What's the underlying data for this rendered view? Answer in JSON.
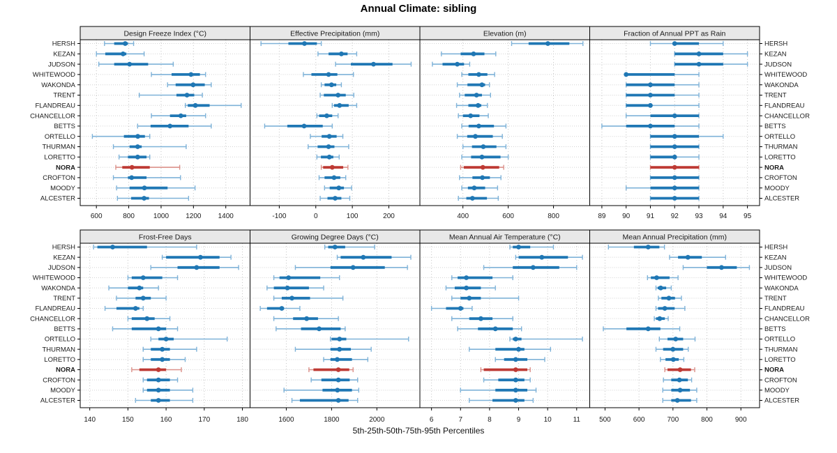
{
  "title": "Annual Climate: sibling",
  "footer": "5th-25th-50th-75th-95th Percentiles",
  "highlight_station": "NORA",
  "stations": [
    "HERSH",
    "KEZAN",
    "JUDSON",
    "WHITEWOOD",
    "WAKONDA",
    "TRENT",
    "FLANDREAU",
    "CHANCELLOR",
    "BETTS",
    "ORTELLO",
    "THURMAN",
    "LORETTO",
    "NORA",
    "CROFTON",
    "MOODY",
    "ALCESTER"
  ],
  "percentile_labels": [
    "5th",
    "25th",
    "50th",
    "75th",
    "95th"
  ],
  "colors": {
    "series": "#1F77B4",
    "series_light": "#7EB2D8",
    "highlight": "#BE3A34",
    "highlight_light": "#DB9089",
    "strip_bg": "#E8E8E8",
    "grid": "#C4C4C4",
    "border": "#000000",
    "text": "#1A1A1A"
  },
  "chart_data": {
    "type": "trellis-dotplot",
    "title": "Annual Climate: sibling",
    "xlabel": "5th-25th-50th-75th-95th Percentiles",
    "layout": {
      "rows": 2,
      "cols": 4,
      "grid": "dotted",
      "legend_position": "none",
      "station_labels": "both-sides"
    },
    "panels": [
      {
        "title": "Design Freeze Index (°C)",
        "row": 0,
        "col": 0,
        "xlim": [
          500,
          1550
        ],
        "ticks": [
          600,
          800,
          1000,
          1200,
          1400
        ],
        "values": [
          [
            650,
            710,
            778,
            795,
            830
          ],
          [
            600,
            655,
            765,
            785,
            895
          ],
          [
            615,
            710,
            805,
            920,
            1075
          ],
          [
            940,
            1065,
            1185,
            1240,
            1275
          ],
          [
            1040,
            1090,
            1198,
            1270,
            1310
          ],
          [
            865,
            1095,
            1160,
            1205,
            1255
          ],
          [
            1150,
            1165,
            1212,
            1300,
            1495
          ],
          [
            940,
            1055,
            1122,
            1155,
            1275
          ],
          [
            855,
            935,
            1055,
            1170,
            1310
          ],
          [
            575,
            770,
            856,
            900,
            930
          ],
          [
            705,
            805,
            855,
            880,
            1155
          ],
          [
            740,
            795,
            855,
            910,
            930
          ],
          [
            720,
            760,
            820,
            930,
            1115
          ],
          [
            705,
            795,
            818,
            910,
            1120
          ],
          [
            725,
            805,
            897,
            1040,
            1210
          ],
          [
            730,
            815,
            895,
            925,
            1170
          ]
        ]
      },
      {
        "title": "Effective Precipitation (mm)",
        "row": 0,
        "col": 1,
        "xlim": [
          -180,
          285
        ],
        "ticks": [
          -100,
          0,
          100,
          200
        ],
        "values": [
          [
            -150,
            -75,
            -31,
            3,
            15
          ],
          [
            6,
            35,
            70,
            87,
            112
          ],
          [
            54,
            96,
            158,
            210,
            261
          ],
          [
            -34,
            -12,
            35,
            59,
            103
          ],
          [
            15,
            24,
            43,
            56,
            70
          ],
          [
            12,
            22,
            61,
            82,
            104
          ],
          [
            45,
            50,
            65,
            90,
            112
          ],
          [
            3,
            9,
            30,
            45,
            61
          ],
          [
            -140,
            -78,
            -32,
            19,
            45
          ],
          [
            -15,
            16,
            37,
            57,
            74
          ],
          [
            -21,
            5,
            35,
            51,
            90
          ],
          [
            3,
            14,
            37,
            48,
            64
          ],
          [
            15,
            20,
            45,
            75,
            88
          ],
          [
            9,
            24,
            50,
            67,
            82
          ],
          [
            24,
            38,
            63,
            77,
            98
          ],
          [
            12,
            32,
            53,
            70,
            93
          ]
        ]
      },
      {
        "title": "Elevation (m)",
        "row": 0,
        "col": 2,
        "xlim": [
          210,
          960
        ],
        "ticks": [
          400,
          600,
          800
        ],
        "values": [
          [
            615,
            690,
            775,
            870,
            930
          ],
          [
            305,
            390,
            447,
            495,
            545
          ],
          [
            265,
            310,
            375,
            405,
            430
          ],
          [
            395,
            424,
            470,
            508,
            540
          ],
          [
            375,
            420,
            484,
            498,
            517
          ],
          [
            385,
            408,
            460,
            484,
            522
          ],
          [
            372,
            424,
            467,
            481,
            508
          ],
          [
            380,
            400,
            434,
            473,
            512
          ],
          [
            395,
            425,
            470,
            537,
            590
          ],
          [
            375,
            419,
            455,
            532,
            574
          ],
          [
            400,
            440,
            490,
            548,
            590
          ],
          [
            395,
            436,
            484,
            566,
            600
          ],
          [
            390,
            404,
            488,
            560,
            580
          ],
          [
            385,
            442,
            486,
            519,
            568
          ],
          [
            395,
            422,
            450,
            498,
            553
          ],
          [
            380,
            415,
            442,
            506,
            556
          ]
        ]
      },
      {
        "title": "Fraction of Annual PPT as Rain",
        "row": 0,
        "col": 3,
        "xlim": [
          88.5,
          95.5
        ],
        "ticks": [
          89,
          90,
          91,
          92,
          93,
          94,
          95
        ],
        "values": [
          [
            91,
            92,
            92,
            93,
            94
          ],
          [
            92,
            92,
            93,
            94,
            95
          ],
          [
            92,
            92,
            93,
            94,
            95
          ],
          [
            90,
            90,
            90,
            92,
            93
          ],
          [
            90,
            90,
            91,
            92,
            93
          ],
          [
            90,
            90,
            91,
            92,
            93
          ],
          [
            90,
            90,
            91,
            91,
            93
          ],
          [
            90,
            91,
            92,
            93,
            93
          ],
          [
            89,
            90,
            91,
            92,
            93
          ],
          [
            91,
            91,
            92,
            93,
            94
          ],
          [
            91,
            91,
            92,
            93,
            93
          ],
          [
            91,
            91,
            92,
            92,
            93
          ],
          [
            91,
            91,
            92,
            93,
            93
          ],
          [
            91,
            91,
            92,
            93,
            93
          ],
          [
            90,
            91,
            92,
            93,
            93
          ],
          [
            91,
            91,
            92,
            93,
            93
          ]
        ]
      },
      {
        "title": "Frost-Free Days",
        "row": 1,
        "col": 0,
        "xlim": [
          137.5,
          182
        ],
        "ticks": [
          140,
          150,
          160,
          170,
          180
        ],
        "values": [
          [
            141,
            142,
            146,
            155,
            168
          ],
          [
            159,
            160,
            169,
            174,
            177
          ],
          [
            156,
            163,
            168,
            174,
            179
          ],
          [
            150,
            151,
            154,
            159,
            163
          ],
          [
            145,
            150,
            153,
            154,
            158
          ],
          [
            147,
            152,
            154,
            156,
            160
          ],
          [
            144,
            147,
            152,
            153,
            154
          ],
          [
            150,
            151,
            155,
            157,
            161
          ],
          [
            146,
            151,
            158,
            160,
            163
          ],
          [
            156,
            158,
            160,
            162,
            176
          ],
          [
            154,
            156,
            159,
            161,
            168
          ],
          [
            154,
            156,
            159,
            161,
            165
          ],
          [
            151,
            153,
            158,
            160,
            164
          ],
          [
            154,
            155,
            158,
            161,
            163
          ],
          [
            154,
            155,
            158,
            161,
            167
          ],
          [
            152,
            156,
            158,
            161,
            167
          ]
        ]
      },
      {
        "title": "Growing Degree Days (°C)",
        "row": 1,
        "col": 1,
        "xlim": [
          1440,
          2190
        ],
        "ticks": [
          1600,
          1800,
          2000
        ],
        "values": [
          [
            1770,
            1785,
            1815,
            1860,
            1990
          ],
          [
            1825,
            1840,
            1940,
            2065,
            2150
          ],
          [
            1640,
            1795,
            1895,
            2035,
            2135
          ],
          [
            1545,
            1570,
            1610,
            1750,
            1835
          ],
          [
            1515,
            1545,
            1605,
            1700,
            1765
          ],
          [
            1545,
            1580,
            1625,
            1705,
            1850
          ],
          [
            1485,
            1515,
            1580,
            1590,
            1660
          ],
          [
            1545,
            1630,
            1690,
            1740,
            1830
          ],
          [
            1555,
            1665,
            1745,
            1840,
            1860
          ],
          [
            1795,
            1800,
            1835,
            1865,
            2140
          ],
          [
            1640,
            1795,
            1835,
            1885,
            1975
          ],
          [
            1765,
            1795,
            1825,
            1890,
            1960
          ],
          [
            1700,
            1720,
            1830,
            1878,
            1895
          ],
          [
            1710,
            1755,
            1830,
            1880,
            1915
          ],
          [
            1590,
            1760,
            1826,
            1890,
            1920
          ],
          [
            1625,
            1660,
            1830,
            1875,
            1915
          ]
        ]
      },
      {
        "title": "Mean Annual Air Temperature (°C)",
        "row": 1,
        "col": 2,
        "xlim": [
          5.6,
          11.45
        ],
        "ticks": [
          6,
          7,
          8,
          9,
          10,
          11
        ],
        "values": [
          [
            8.7,
            8.8,
            9.0,
            9.4,
            10.2
          ],
          [
            8.9,
            9.0,
            9.8,
            10.7,
            11.2
          ],
          [
            7.8,
            8.8,
            9.5,
            10.4,
            11.0
          ],
          [
            6.7,
            6.9,
            7.2,
            8.1,
            8.8
          ],
          [
            6.5,
            6.8,
            7.2,
            7.7,
            8.2
          ],
          [
            6.7,
            7.0,
            7.3,
            7.7,
            9.0
          ],
          [
            6.0,
            6.5,
            7.0,
            7.1,
            7.4
          ],
          [
            6.7,
            7.3,
            7.7,
            8.1,
            8.8
          ],
          [
            6.9,
            7.6,
            8.2,
            8.8,
            9.1
          ],
          [
            8.7,
            8.8,
            8.9,
            9.1,
            11.2
          ],
          [
            7.3,
            8.2,
            9.0,
            9.2,
            10.1
          ],
          [
            8.2,
            8.5,
            8.9,
            9.3,
            9.9
          ],
          [
            7.7,
            7.8,
            8.9,
            9.3,
            9.4
          ],
          [
            7.8,
            8.3,
            8.9,
            9.2,
            9.4
          ],
          [
            7.0,
            8.2,
            8.9,
            9.3,
            9.6
          ],
          [
            7.3,
            8.1,
            8.9,
            9.2,
            9.5
          ]
        ]
      },
      {
        "title": "Mean Annual Precipitation (mm)",
        "row": 1,
        "col": 3,
        "xlim": [
          455,
          955
        ],
        "ticks": [
          500,
          600,
          700,
          800,
          900
        ],
        "values": [
          [
            510,
            585,
            627,
            660,
            675
          ],
          [
            690,
            715,
            744,
            785,
            855
          ],
          [
            730,
            800,
            843,
            888,
            925
          ],
          [
            625,
            635,
            652,
            690,
            715
          ],
          [
            650,
            655,
            664,
            680,
            695
          ],
          [
            657,
            666,
            688,
            706,
            725
          ],
          [
            650,
            656,
            676,
            705,
            735
          ],
          [
            645,
            650,
            661,
            676,
            686
          ],
          [
            495,
            563,
            627,
            663,
            720
          ],
          [
            660,
            684,
            708,
            730,
            765
          ],
          [
            650,
            671,
            700,
            730,
            745
          ],
          [
            663,
            678,
            701,
            717,
            732
          ],
          [
            676,
            684,
            721,
            753,
            764
          ],
          [
            672,
            695,
            719,
            744,
            755
          ],
          [
            670,
            695,
            721,
            750,
            770
          ],
          [
            670,
            695,
            713,
            753,
            770
          ]
        ]
      }
    ]
  }
}
